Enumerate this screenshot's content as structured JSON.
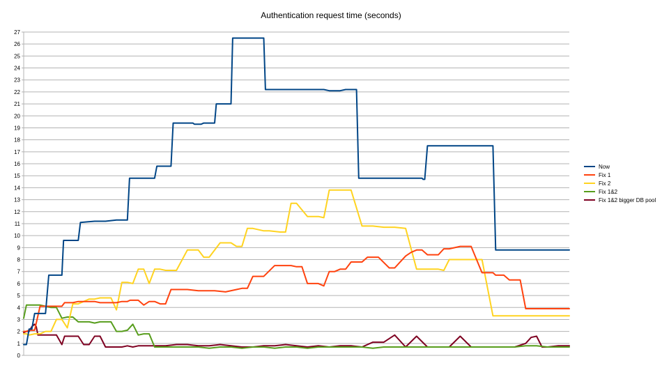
{
  "chart_data": {
    "type": "line",
    "title": "Authentication request time (seconds)",
    "xlabel": "",
    "ylabel": "",
    "ylim": [
      0,
      27
    ],
    "yticks": [
      0,
      1,
      2,
      3,
      4,
      5,
      6,
      7,
      8,
      9,
      10,
      11,
      12,
      13,
      14,
      15,
      16,
      17,
      18,
      19,
      20,
      21,
      22,
      23,
      24,
      25,
      26,
      27
    ],
    "xlim": [
      0,
      100
    ],
    "grid": true,
    "legend_position": "right",
    "series": [
      {
        "name": "Now",
        "color": "#004586",
        "x": [
          0,
          0.5,
          1,
          1.5,
          2,
          2.6,
          3,
          4,
          4.6,
          5,
          5.2,
          7,
          7.3,
          10,
          10.4,
          13,
          13.5,
          15,
          17,
          19,
          19.4,
          24,
          24.4,
          27,
          27.4,
          31,
          31.3,
          32.5,
          33,
          35,
          35.3,
          38,
          38.3,
          44,
          44.3,
          46.5,
          47,
          55,
          56,
          58,
          59,
          61,
          61.4,
          73,
          73.2,
          73.5,
          74,
          86,
          86.5,
          100
        ],
        "y": [
          0.9,
          0.9,
          2.2,
          2.2,
          3.5,
          3.5,
          3.5,
          3.5,
          6.7,
          6.7,
          6.7,
          6.7,
          9.6,
          9.6,
          11.1,
          11.2,
          11.2,
          11.2,
          11.3,
          11.3,
          14.8,
          14.8,
          15.8,
          15.8,
          19.4,
          19.4,
          19.3,
          19.3,
          19.4,
          19.4,
          21.0,
          21.0,
          26.5,
          26.5,
          22.2,
          22.2,
          22.2,
          22.2,
          22.1,
          22.1,
          22.2,
          22.2,
          14.8,
          14.8,
          14.7,
          14.7,
          17.5,
          17.5,
          8.8,
          8.8
        ]
      },
      {
        "name": "Fix 1",
        "color": "#ff420e",
        "x": [
          0,
          0.5,
          1,
          2,
          3,
          4,
          4.5,
          5,
          6,
          7,
          7.5,
          9,
          10,
          12,
          13,
          14,
          16,
          17,
          18,
          19,
          19.5,
          20,
          21,
          22,
          23,
          24,
          25,
          26,
          27,
          28,
          30,
          32,
          33,
          35,
          37,
          39,
          40,
          41,
          42,
          44,
          46,
          48,
          49,
          50,
          51,
          52,
          53,
          54,
          55,
          56,
          57,
          58,
          59,
          60,
          61,
          62,
          63,
          65,
          67,
          68,
          70,
          71,
          72,
          73,
          74,
          75,
          76,
          77,
          78,
          80,
          82,
          84,
          85,
          86,
          86.5,
          87,
          88,
          89,
          90,
          91,
          92,
          94,
          96,
          97,
          98,
          100
        ],
        "y": [
          2.0,
          2.0,
          2.1,
          2.1,
          4.1,
          4.1,
          4.1,
          4.1,
          4.1,
          4.1,
          4.4,
          4.4,
          4.5,
          4.5,
          4.5,
          4.4,
          4.4,
          4.4,
          4.5,
          4.5,
          4.6,
          4.6,
          4.6,
          4.2,
          4.5,
          4.5,
          4.3,
          4.3,
          5.5,
          5.5,
          5.5,
          5.4,
          5.4,
          5.4,
          5.3,
          5.5,
          5.6,
          5.6,
          6.6,
          6.6,
          7.5,
          7.5,
          7.5,
          7.4,
          7.4,
          6.0,
          6.0,
          6.0,
          5.8,
          7.0,
          7.0,
          7.2,
          7.2,
          7.8,
          7.8,
          7.8,
          8.2,
          8.2,
          7.3,
          7.3,
          8.3,
          8.6,
          8.8,
          8.8,
          8.4,
          8.4,
          8.4,
          8.9,
          8.9,
          9.1,
          9.1,
          6.9,
          6.9,
          6.9,
          6.7,
          6.7,
          6.7,
          6.3,
          6.3,
          6.3,
          3.9,
          3.9,
          3.9,
          3.9,
          3.9,
          3.9
        ]
      },
      {
        "name": "Fix 2",
        "color": "#ffd320",
        "x": [
          0,
          0.5,
          1,
          2,
          3,
          4,
          5,
          6,
          7,
          8,
          9,
          10,
          11,
          12,
          13,
          14,
          16,
          17,
          18,
          19,
          20,
          21,
          22,
          23,
          24,
          25,
          26,
          27,
          28,
          30,
          32,
          33,
          34,
          36,
          38,
          39,
          40,
          41,
          42,
          44,
          45,
          47,
          48,
          49,
          50,
          52,
          54,
          55,
          56,
          58,
          60,
          62,
          64,
          66,
          68,
          70,
          72,
          74,
          75,
          76,
          77,
          78,
          79,
          80,
          82,
          84,
          86,
          88,
          90,
          91,
          92,
          94,
          96,
          98,
          100
        ],
        "y": [
          1.8,
          1.8,
          1.7,
          1.8,
          1.8,
          2.0,
          2.0,
          3.0,
          3.0,
          2.3,
          4.3,
          4.3,
          4.5,
          4.7,
          4.7,
          4.8,
          4.8,
          3.8,
          6.1,
          6.1,
          6.0,
          7.2,
          7.2,
          6.0,
          7.2,
          7.2,
          7.1,
          7.1,
          7.1,
          8.8,
          8.8,
          8.2,
          8.2,
          9.4,
          9.4,
          9.1,
          9.1,
          10.6,
          10.6,
          10.4,
          10.4,
          10.3,
          10.3,
          12.7,
          12.7,
          11.6,
          11.6,
          11.5,
          13.8,
          13.8,
          13.8,
          10.8,
          10.8,
          10.7,
          10.7,
          10.6,
          7.2,
          7.2,
          7.2,
          7.2,
          7.1,
          8.0,
          8.0,
          8.0,
          8.0,
          8.0,
          3.3,
          3.3,
          3.3,
          3.3,
          3.3,
          3.3,
          3.3,
          3.3,
          3.3
        ]
      },
      {
        "name": "Fix 1&2",
        "color": "#579d1c",
        "x": [
          0,
          0.5,
          1,
          2,
          3,
          4,
          5,
          6,
          7,
          8,
          9,
          10,
          11,
          12,
          13,
          14,
          15,
          16,
          17,
          18,
          19,
          20,
          21,
          22,
          23,
          24,
          25,
          26,
          28,
          30,
          32,
          34,
          36,
          38,
          40,
          42,
          44,
          46,
          48,
          50,
          52,
          54,
          56,
          58,
          60,
          62,
          64,
          66,
          68,
          70,
          72,
          74,
          76,
          78,
          80,
          82,
          84,
          86,
          88,
          90,
          92,
          94,
          96,
          98,
          100
        ],
        "y": [
          3.1,
          4.2,
          4.2,
          4.2,
          4.2,
          4.1,
          4.0,
          4.0,
          3.1,
          3.2,
          3.2,
          2.8,
          2.8,
          2.8,
          2.7,
          2.8,
          2.8,
          2.8,
          2.0,
          2.0,
          2.1,
          2.6,
          1.7,
          1.8,
          1.8,
          0.7,
          0.7,
          0.7,
          0.7,
          0.7,
          0.7,
          0.6,
          0.7,
          0.7,
          0.6,
          0.7,
          0.7,
          0.6,
          0.7,
          0.7,
          0.6,
          0.7,
          0.7,
          0.7,
          0.7,
          0.7,
          0.6,
          0.7,
          0.7,
          0.7,
          0.7,
          0.7,
          0.7,
          0.7,
          0.7,
          0.7,
          0.7,
          0.7,
          0.7,
          0.7,
          0.8,
          0.8,
          0.7,
          0.7,
          0.7
        ]
      },
      {
        "name": "Fix 1&2 bigger DB pool",
        "color": "#7e0021",
        "x": [
          0,
          0.5,
          1,
          1.5,
          2,
          2.3,
          2.6,
          3,
          3.5,
          4,
          5,
          6,
          7,
          7.5,
          8,
          9,
          10,
          11,
          12,
          13,
          14,
          15,
          16,
          17,
          18,
          19,
          20,
          21,
          22,
          24,
          26,
          28,
          30,
          32,
          34,
          36,
          38,
          40,
          42,
          44,
          46,
          48,
          50,
          52,
          54,
          56,
          58,
          60,
          62,
          64,
          66,
          68,
          70,
          72,
          74,
          76,
          78,
          80,
          82,
          84,
          86,
          88,
          90,
          92,
          93,
          94,
          95,
          96,
          98,
          100
        ],
        "y": [
          1.9,
          2.0,
          2.0,
          2.4,
          2.6,
          2.4,
          1.7,
          1.7,
          1.7,
          1.7,
          1.7,
          1.7,
          0.9,
          1.6,
          1.6,
          1.6,
          1.6,
          0.9,
          0.9,
          1.6,
          1.6,
          0.7,
          0.7,
          0.7,
          0.7,
          0.8,
          0.7,
          0.8,
          0.8,
          0.8,
          0.8,
          0.9,
          0.9,
          0.8,
          0.8,
          0.9,
          0.8,
          0.7,
          0.7,
          0.8,
          0.8,
          0.9,
          0.8,
          0.7,
          0.8,
          0.7,
          0.8,
          0.8,
          0.7,
          1.1,
          1.1,
          1.7,
          0.7,
          1.6,
          0.7,
          0.7,
          0.7,
          1.6,
          0.7,
          0.7,
          0.7,
          0.7,
          0.7,
          1.0,
          1.5,
          1.6,
          0.7,
          0.7,
          0.8,
          0.8
        ]
      }
    ]
  }
}
